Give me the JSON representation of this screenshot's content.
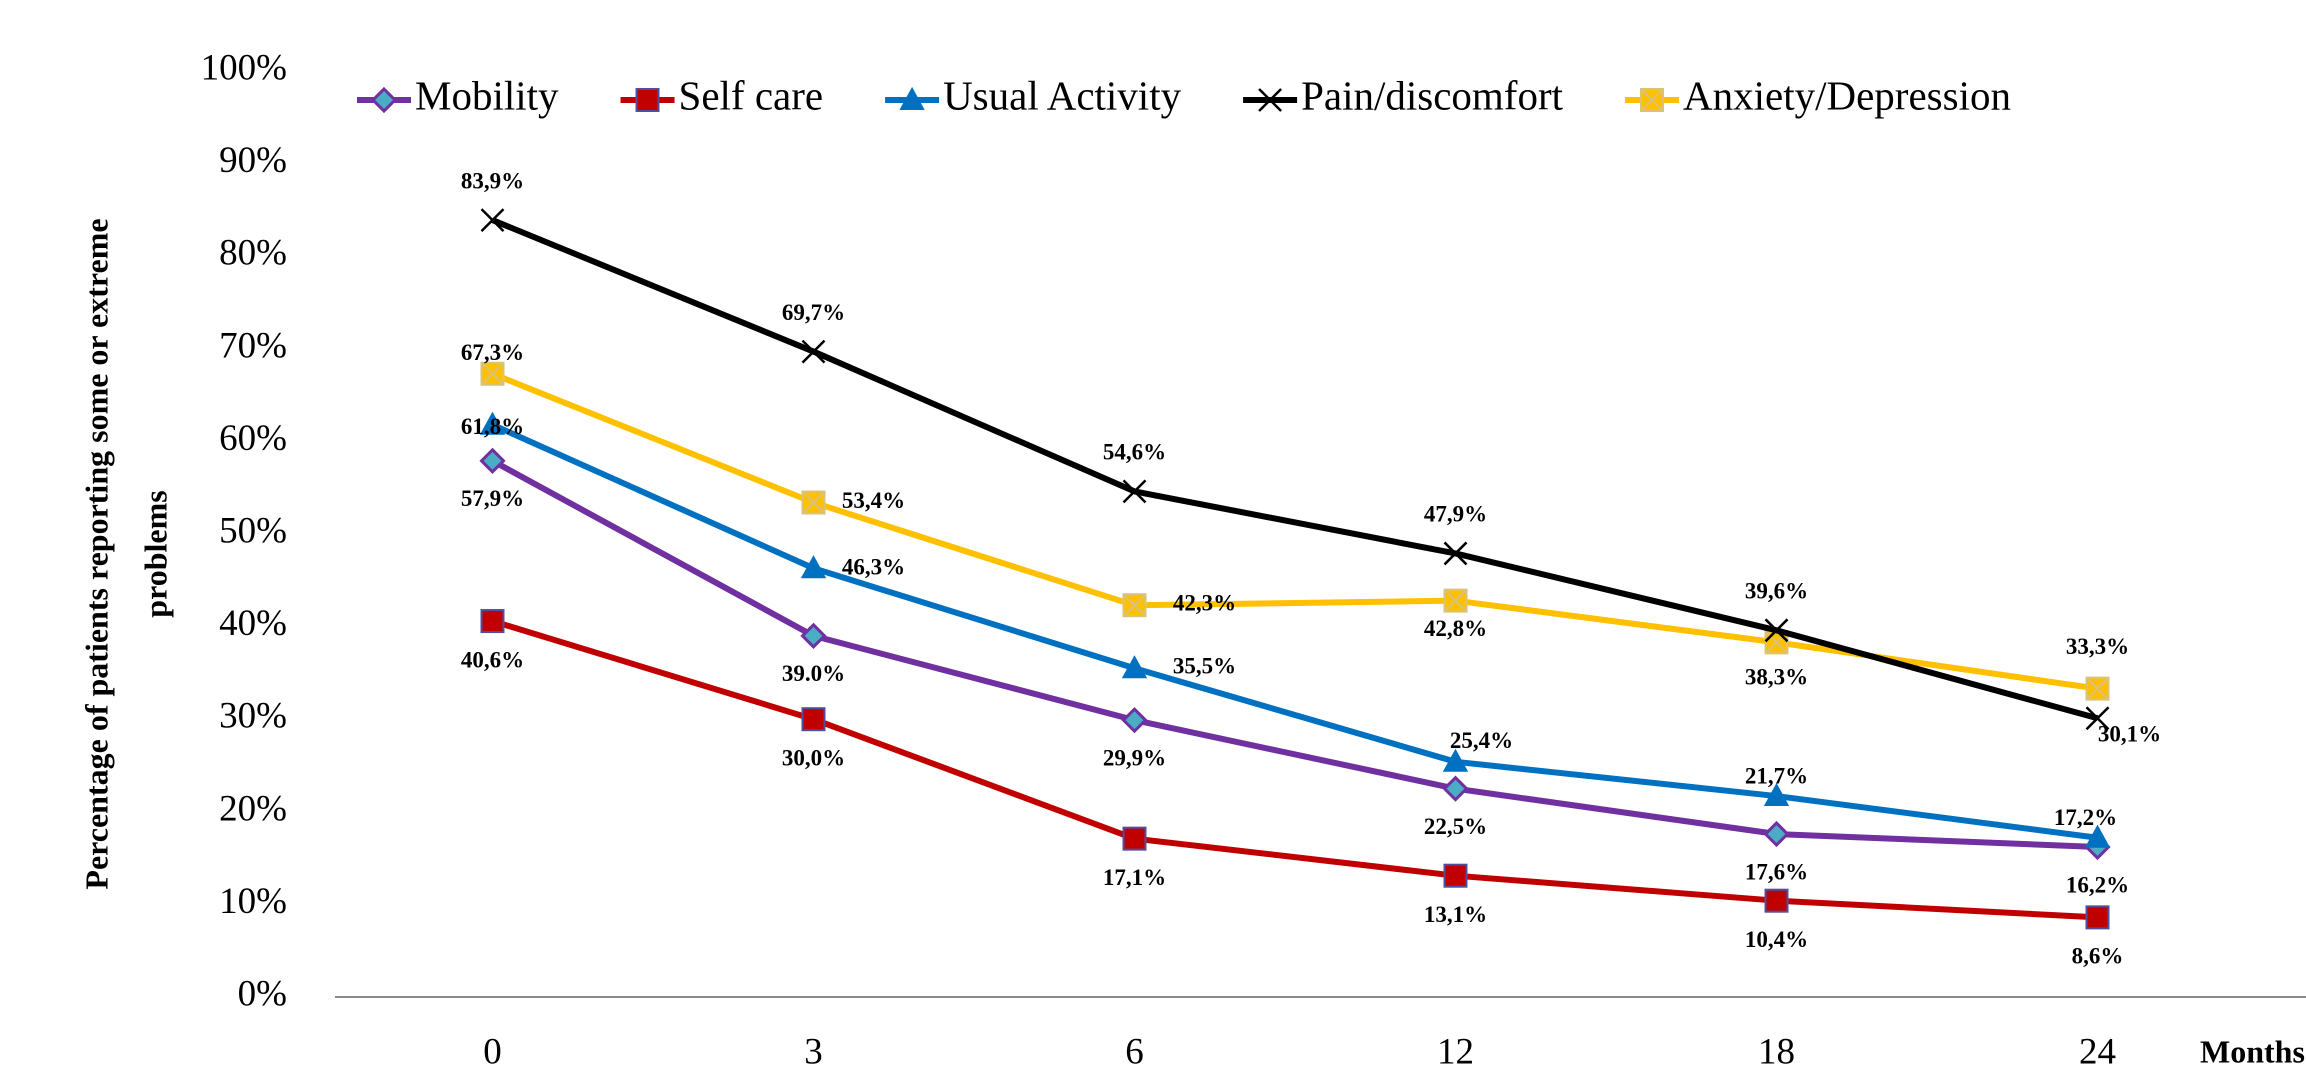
{
  "chart_data": {
    "type": "line",
    "ylabel": [
      "Percentage of patients reporting  some or extreme",
      "problems"
    ],
    "xlabel": "Months",
    "categories": [
      "0",
      "3",
      "6",
      "12",
      "18",
      "24"
    ],
    "ylim": [
      0,
      100
    ],
    "yticks": [
      {
        "value": 0,
        "label": "0%"
      },
      {
        "value": 10,
        "label": "10%"
      },
      {
        "value": 20,
        "label": "20%"
      },
      {
        "value": 30,
        "label": "30%"
      },
      {
        "value": 40,
        "label": "40%"
      },
      {
        "value": 50,
        "label": "50%"
      },
      {
        "value": 60,
        "label": "60%"
      },
      {
        "value": 70,
        "label": "70%"
      },
      {
        "value": 80,
        "label": "80%"
      },
      {
        "value": 90,
        "label": "90%"
      },
      {
        "value": 100,
        "label": "100%"
      }
    ],
    "legend": "top",
    "series": [
      {
        "name": "Mobility",
        "color": "#7030a0",
        "values": [
          57.9,
          39.0,
          29.9,
          22.5,
          17.6,
          16.2
        ],
        "value_labels": [
          "57,9%",
          "39.0%",
          "29,9%",
          "22,5%",
          "17,6%",
          "16,2%"
        ]
      },
      {
        "name": "Self care",
        "color": "#c00000",
        "values": [
          40.6,
          30.0,
          17.1,
          13.1,
          10.4,
          8.6
        ],
        "value_labels": [
          "40,6%",
          "30,0%",
          "17,1%",
          "13,1%",
          "10,4%",
          "8,6%"
        ]
      },
      {
        "name": "Usual Activity",
        "color": "#0070c0",
        "values": [
          61.8,
          46.3,
          35.5,
          25.4,
          21.7,
          17.2
        ],
        "value_labels": [
          "61,8%",
          "46,3%",
          "35,5%",
          "25,4%",
          "21,7%",
          "17,2%"
        ]
      },
      {
        "name": "Pain/discomfort",
        "color": "#000000",
        "values": [
          83.9,
          69.7,
          54.6,
          47.9,
          39.6,
          30.1
        ],
        "value_labels": [
          "83,9%",
          "69,7%",
          "54,6%",
          "47,9%",
          "39,6%",
          "30,1%"
        ]
      },
      {
        "name": "Anxiety/Depression",
        "color": "#ffc000",
        "values": [
          67.3,
          53.4,
          42.3,
          42.8,
          38.3,
          33.3
        ],
        "value_labels": [
          "67,3%",
          "53,4%",
          "42,3%",
          "42,8%",
          "38,3%",
          "33,3%"
        ]
      }
    ]
  }
}
